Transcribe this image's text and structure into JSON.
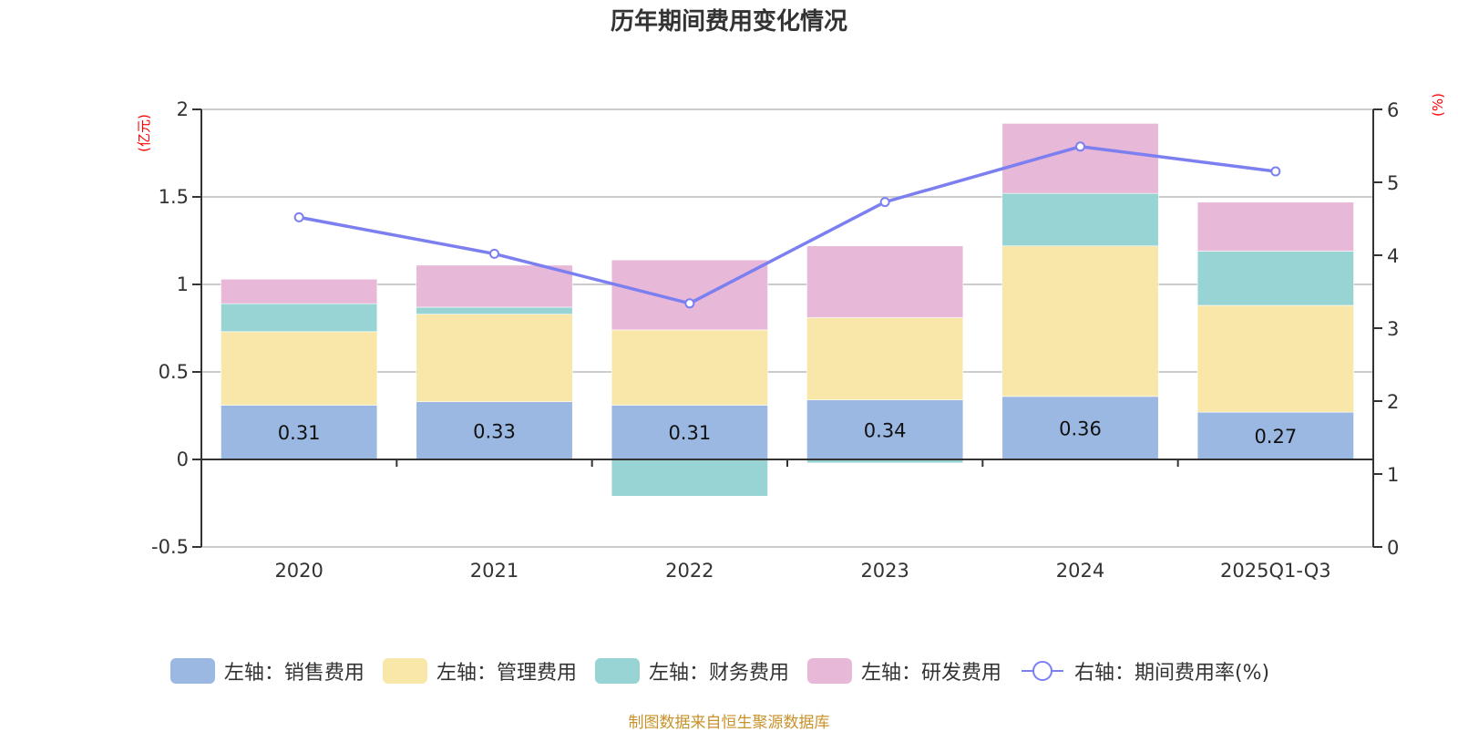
{
  "chart_data": {
    "type": "bar",
    "title": "历年期间费用变化情况",
    "categories": [
      "2020",
      "2021",
      "2022",
      "2023",
      "2024",
      "2025Q1-Q3"
    ],
    "left_axis": {
      "unit_label": "(亿元)",
      "range": [
        -0.5,
        2
      ],
      "ticks": [
        -0.5,
        0,
        0.5,
        1,
        1.5,
        2
      ],
      "tick_labels": [
        "-0.5",
        "0",
        "0.5",
        "1",
        "1.5",
        "2"
      ]
    },
    "right_axis": {
      "unit_label": "(%)",
      "range": [
        0,
        6
      ],
      "ticks": [
        0,
        1,
        2,
        3,
        4,
        5,
        6
      ],
      "tick_labels": [
        "0",
        "1",
        "2",
        "3",
        "4",
        "5",
        "6"
      ]
    },
    "grid": true,
    "stacked": true,
    "series": [
      {
        "name": "左轴：销售费用",
        "type": "bar",
        "axis": "left",
        "color": "#9bb8e2",
        "values": [
          0.31,
          0.33,
          0.31,
          0.34,
          0.36,
          0.27
        ],
        "show_labels": true,
        "labels": [
          "0.31",
          "0.33",
          "0.31",
          "0.34",
          "0.36",
          "0.27"
        ]
      },
      {
        "name": "左轴：管理费用",
        "type": "bar",
        "axis": "left",
        "color": "#f8e7a9",
        "values": [
          0.42,
          0.5,
          0.43,
          0.47,
          0.86,
          0.61
        ]
      },
      {
        "name": "左轴：财务费用",
        "type": "bar",
        "axis": "left",
        "color": "#98d4d4",
        "values": [
          0.16,
          0.04,
          -0.21,
          -0.02,
          0.3,
          0.31
        ]
      },
      {
        "name": "左轴：研发费用",
        "type": "bar",
        "axis": "left",
        "color": "#e8b8d9",
        "values": [
          0.14,
          0.24,
          0.4,
          0.41,
          0.4,
          0.28
        ]
      },
      {
        "name": "右轴：期间费用率(%)",
        "type": "line",
        "axis": "right",
        "color": "#7b7ff0",
        "values": [
          4.52,
          4.02,
          3.34,
          4.73,
          5.49,
          5.15
        ]
      }
    ],
    "legend_position": "bottom"
  },
  "footer": {
    "source": "制图数据来自恒生聚源数据库"
  }
}
